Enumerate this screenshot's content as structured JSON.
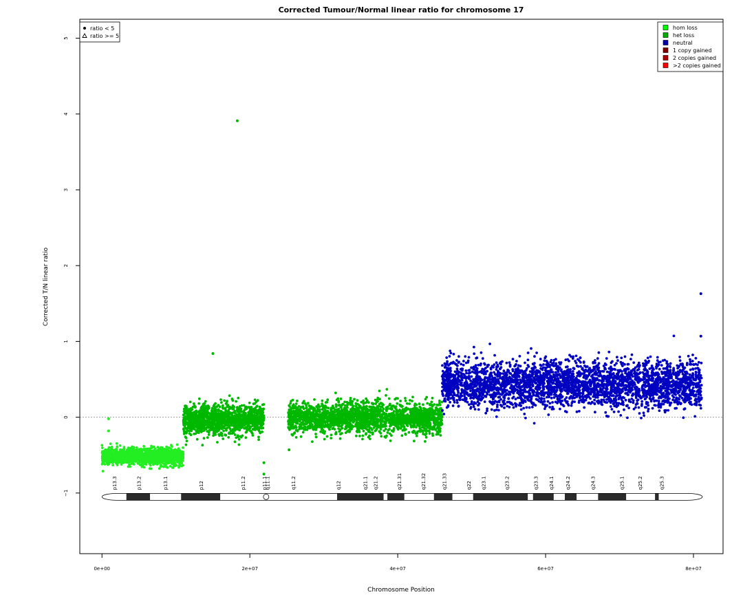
{
  "chart_data": {
    "type": "scatter",
    "title": "Corrected Tumour/Normal linear ratio for chromosome  17",
    "xlabel": "Chromosome Position",
    "ylabel": "Corrected T/N linear ratio",
    "xlim": [
      -3000000,
      84000000
    ],
    "ylim": [
      -1.8,
      5.25
    ],
    "xticks": [
      {
        "value": 0,
        "label": "0e+00"
      },
      {
        "value": 20000000,
        "label": "2e+07"
      },
      {
        "value": 40000000,
        "label": "4e+07"
      },
      {
        "value": 60000000,
        "label": "6e+07"
      },
      {
        "value": 80000000,
        "label": "8e+07"
      }
    ],
    "yticks": [
      {
        "value": -1,
        "label": "−1"
      },
      {
        "value": 0,
        "label": "0"
      },
      {
        "value": 1,
        "label": "1"
      },
      {
        "value": 2,
        "label": "2"
      },
      {
        "value": 3,
        "label": "3"
      },
      {
        "value": 4,
        "label": "4"
      },
      {
        "value": 5,
        "label": "5"
      }
    ],
    "reference_line": 0,
    "marker_legend": {
      "placement": "top-left",
      "items": [
        {
          "symbol": "dot",
          "label": "ratio < 5"
        },
        {
          "symbol": "triangle",
          "label": "ratio >= 5"
        }
      ]
    },
    "legend": {
      "placement": "top-right",
      "items": [
        {
          "label": "hom loss",
          "color": "#00ff00"
        },
        {
          "label": "het loss",
          "color": "#00b000"
        },
        {
          "label": "neutral",
          "color": "#0000b0"
        },
        {
          "label": "1 copy gained",
          "color": "#800000"
        },
        {
          "label": "2 copies gained",
          "color": "#b00000"
        },
        {
          "label": ">2 copies gained",
          "color": "#ff0000"
        }
      ]
    },
    "segments": [
      {
        "status": "hom loss",
        "color": "#22ee22",
        "x_start": 0,
        "x_end": 11000000,
        "mean": -0.52,
        "spread": 0.055,
        "count": 1300
      },
      {
        "status": "het loss",
        "color": "#00b800",
        "x_start": 11000000,
        "x_end": 21900000,
        "mean": -0.03,
        "spread": 0.1,
        "count": 1300
      },
      {
        "status": "het loss",
        "color": "#00b800",
        "x_start": 25200000,
        "x_end": 46000000,
        "mean": -0.01,
        "spread": 0.1,
        "count": 2200
      },
      {
        "status": "neutral",
        "color": "#0000c0",
        "x_start": 46000000,
        "x_end": 81100000,
        "mean": 0.43,
        "spread": 0.15,
        "count": 3400
      }
    ],
    "outliers": [
      {
        "x": 900000,
        "y": -0.02,
        "color": "#22ee22"
      },
      {
        "x": 900000,
        "y": -0.18,
        "color": "#22ee22"
      },
      {
        "x": 15000000,
        "y": 0.84,
        "color": "#00b800"
      },
      {
        "x": 18300000,
        "y": 3.91,
        "color": "#00b800"
      },
      {
        "x": 21900000,
        "y": -0.75,
        "color": "#00b800"
      },
      {
        "x": 21900000,
        "y": -0.6,
        "color": "#00b800"
      },
      {
        "x": 25300000,
        "y": -0.43,
        "color": "#00b800"
      },
      {
        "x": 81000000,
        "y": 1.63,
        "color": "#0000c0"
      },
      {
        "x": 81000000,
        "y": 1.07,
        "color": "#0000c0"
      }
    ],
    "ideogram": {
      "y": -1.05,
      "centromere": 22200000,
      "bands": [
        {
          "name": "p13.3",
          "start": 0,
          "end": 3300000,
          "stain": "light"
        },
        {
          "name": "p13.2",
          "start": 3300000,
          "end": 6500000,
          "stain": "dark"
        },
        {
          "name": "p13.1",
          "start": 6500000,
          "end": 10700000,
          "stain": "light"
        },
        {
          "name": "p12",
          "start": 10700000,
          "end": 16000000,
          "stain": "dark"
        },
        {
          "name": "p11.2",
          "start": 16000000,
          "end": 22200000,
          "stain": "light"
        },
        {
          "name": "p11.1",
          "start": 22200000,
          "end": 24000000,
          "stain": "cen"
        },
        {
          "name": "q11.1",
          "start": 24000000,
          "end": 25800000,
          "stain": "cen"
        },
        {
          "name": "q11.2",
          "start": 25800000,
          "end": 31800000,
          "stain": "light"
        },
        {
          "name": "q12",
          "start": 31800000,
          "end": 38100000,
          "stain": "dark"
        },
        {
          "name": "q21.1",
          "start": 38100000,
          "end": 38600000,
          "stain": "light"
        },
        {
          "name": "q21.2",
          "start": 38600000,
          "end": 40900000,
          "stain": "dark"
        },
        {
          "name": "q21.31",
          "start": 40900000,
          "end": 44900000,
          "stain": "light"
        },
        {
          "name": "q21.32",
          "start": 44900000,
          "end": 47400000,
          "stain": "dark"
        },
        {
          "name": "q21.33",
          "start": 47400000,
          "end": 50200000,
          "stain": "light"
        },
        {
          "name": "q22",
          "start": 50200000,
          "end": 57600000,
          "stain": "dark"
        },
        {
          "name": "q23.1",
          "start": 57600000,
          "end": 58300000,
          "stain": "light"
        },
        {
          "name": "q23.2",
          "start": 58300000,
          "end": 61100000,
          "stain": "dark"
        },
        {
          "name": "q23.3",
          "start": 61100000,
          "end": 62600000,
          "stain": "light"
        },
        {
          "name": "q24.1",
          "start": 62600000,
          "end": 64200000,
          "stain": "dark"
        },
        {
          "name": "q24.2",
          "start": 64200000,
          "end": 67100000,
          "stain": "light"
        },
        {
          "name": "q24.3",
          "start": 67100000,
          "end": 70900000,
          "stain": "dark"
        },
        {
          "name": "q25.1",
          "start": 70900000,
          "end": 74800000,
          "stain": "light"
        },
        {
          "name": "q25.2",
          "start": 74800000,
          "end": 75300000,
          "stain": "dark"
        },
        {
          "name": "q25.3",
          "start": 75300000,
          "end": 81200000,
          "stain": "light"
        }
      ],
      "label_bands": [
        {
          "name": "p13.3",
          "pos": 1700000
        },
        {
          "name": "p13.2",
          "pos": 5000000
        },
        {
          "name": "p13.1",
          "pos": 8600000
        },
        {
          "name": "p12",
          "pos": 13400000
        },
        {
          "name": "p11.2",
          "pos": 19100000
        },
        {
          "name": "p11.1",
          "pos": 22000000
        },
        {
          "name": "q11.1",
          "pos": 22400000
        },
        {
          "name": "q11.2",
          "pos": 25900000
        },
        {
          "name": "q12",
          "pos": 32000000
        },
        {
          "name": "q21.1",
          "pos": 35600000
        },
        {
          "name": "q21.2",
          "pos": 37000000
        },
        {
          "name": "q21.31",
          "pos": 40200000
        },
        {
          "name": "q21.32",
          "pos": 43500000
        },
        {
          "name": "q21.33",
          "pos": 46300000
        },
        {
          "name": "q22",
          "pos": 49600000
        },
        {
          "name": "q23.1",
          "pos": 51600000
        },
        {
          "name": "q23.2",
          "pos": 54800000
        },
        {
          "name": "q23.3",
          "pos": 58700000
        },
        {
          "name": "q24.1",
          "pos": 60800000
        },
        {
          "name": "q24.2",
          "pos": 63000000
        },
        {
          "name": "q24.3",
          "pos": 66400000
        },
        {
          "name": "q25.1",
          "pos": 70300000
        },
        {
          "name": "q25.2",
          "pos": 72800000
        },
        {
          "name": "q25.3",
          "pos": 75700000
        }
      ]
    }
  }
}
